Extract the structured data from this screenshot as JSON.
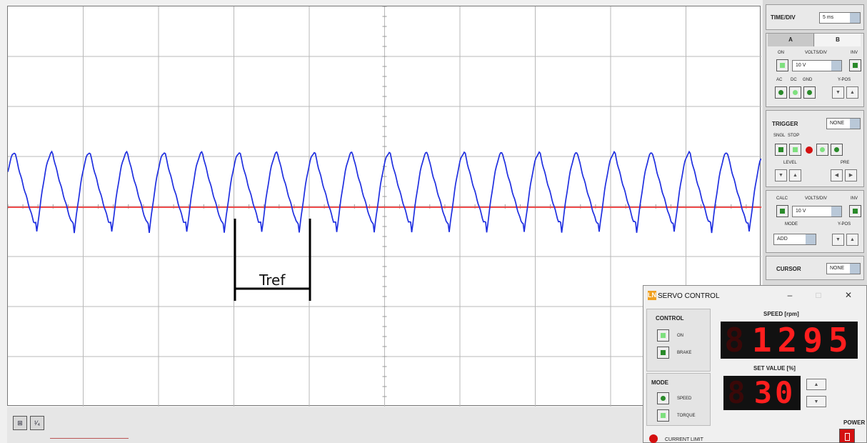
{
  "scope": {
    "annotation_label": "Tref",
    "zoom_icons": [
      "zoom-in-icon",
      "zoom-scale-icon"
    ]
  },
  "colors": {
    "channel_a": "#1f2fe0",
    "calc_trace": "#ee4a4a",
    "led_red": "#d41010",
    "digit_red": "#ff1e1e"
  },
  "right_panel": {
    "time_div_label": "TIME/DIV",
    "time_div_value": "5 ms",
    "tab_a": "A",
    "tab_b": "B",
    "on_label": "ON",
    "volts_div_label": "VOLTS/DIV",
    "inv_label": "INV",
    "channel_volts": "10 V",
    "ac_label": "AC",
    "dc_label": "DC",
    "gnd_label": "GND",
    "ypos_label": "Y-POS",
    "trigger_label": "TRIGGER",
    "trigger_value": "NONE",
    "sngl_label": "SNGL",
    "stop_label": "STOP",
    "level_label": "LEVEL",
    "pre_label": "PRE",
    "calc_label": "CALC",
    "calc_volts_label": "VOLTS/DIV",
    "calc_inv_label": "INV",
    "calc_volts": "10 V",
    "mode_label": "MODE",
    "calc_ypos_label": "Y-POS",
    "mode_value": "ADD",
    "cursor_label": "CURSOR",
    "cursor_value": "NONE"
  },
  "servo": {
    "title": "SERVO CONTROL",
    "logo_text": "LN",
    "control_label": "CONTROL",
    "on_label": "ON",
    "brake_label": "BRAKE",
    "mode_label": "MODE",
    "speed_label": "SPEED",
    "torque_label": "TORQUE",
    "speed_header": "SPEED [rpm]",
    "speed_value": "1295",
    "set_value_header": "SET VALUE [%]",
    "set_value": "30",
    "power_label": "POWER",
    "current_limit_label": "CURRENT LIMIT"
  }
}
